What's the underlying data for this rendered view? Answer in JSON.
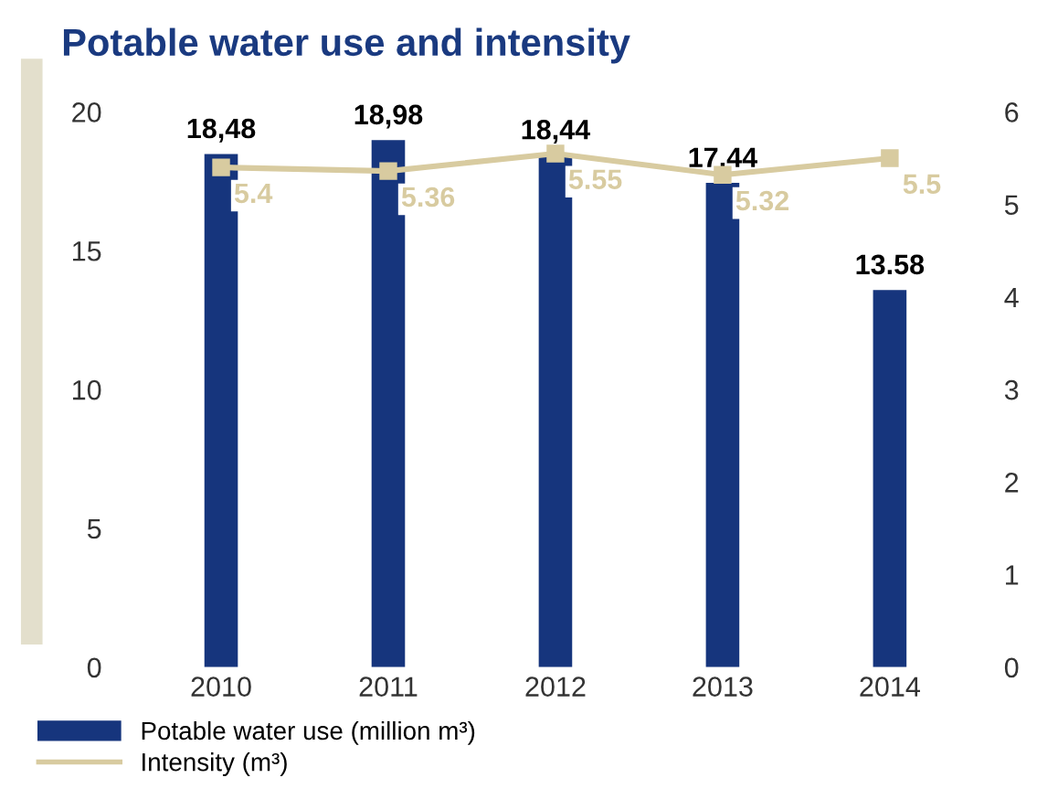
{
  "chart_data": {
    "type": "bar",
    "title": "Potable water use and intensity",
    "categories": [
      "2010",
      "2011",
      "2012",
      "2013",
      "2014"
    ],
    "series": [
      {
        "name": "Potable water use (million m³)",
        "color": "#16357d",
        "values": [
          18.48,
          18.98,
          18.44,
          17.44,
          13.58
        ],
        "value_labels": [
          "18,48",
          "18,98",
          "18,44",
          "17,44",
          "13.58"
        ]
      },
      {
        "name": "Intensity (m³)",
        "type": "line",
        "axis": "y2",
        "color": "#d8cba0",
        "marker": "square",
        "values": [
          5.4,
          5.36,
          5.55,
          5.32,
          5.5
        ],
        "value_labels": [
          "5.4",
          "5.36",
          "5.55",
          "5.32",
          "5.5"
        ]
      }
    ],
    "ylim": [
      0,
      20
    ],
    "yticks": [
      0,
      5,
      10,
      15,
      20
    ],
    "y2lim": [
      0,
      6
    ],
    "y2ticks": [
      0,
      1,
      2,
      3,
      4,
      5,
      6
    ],
    "grid": false,
    "legend": "bottom left"
  }
}
